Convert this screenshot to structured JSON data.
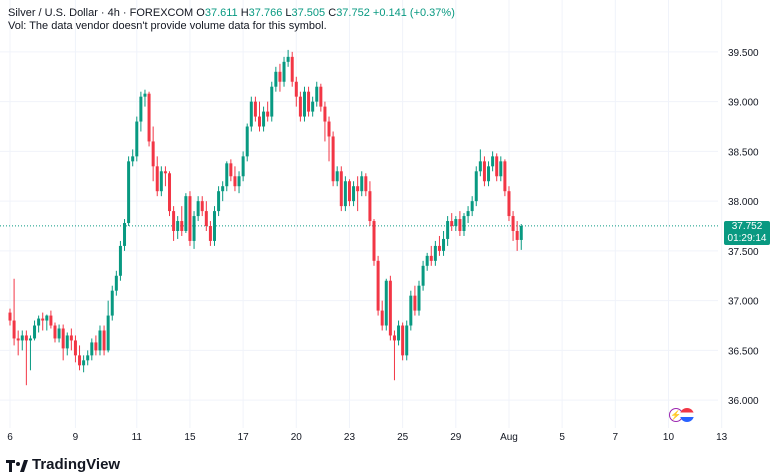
{
  "legend": {
    "symbol": "Silver / U.S. Dollar · 4h · FOREXCOM",
    "o_label": "O",
    "o_value": "37.611",
    "h_label": "H",
    "h_value": "37.766",
    "l_label": "L",
    "l_value": "37.505",
    "c_label": "C",
    "c_value": "37.752",
    "change": "+0.141 (+0.37%)"
  },
  "volume_note": "Vol: The data vendor doesn't provide volume data for this symbol.",
  "last_price": {
    "value": "37.752",
    "countdown": "01:29:14"
  },
  "brand": {
    "name": "TradingView"
  },
  "colors": {
    "up": "#089981",
    "down": "#F23645",
    "grid": "#F0F3FA",
    "axis_text": "#131722"
  },
  "icons": {
    "event_badge": "lightning-icon",
    "flag_badge": "us-flag-icon",
    "logo": "tradingview-logo-icon"
  },
  "chart_data": {
    "type": "candlestick",
    "title": "",
    "y_ticks": [
      "39.500",
      "39.000",
      "38.500",
      "38.000",
      "37.500",
      "37.000",
      "36.500",
      "36.000"
    ],
    "y_tick_values": [
      39.5,
      39.0,
      38.5,
      38.0,
      37.5,
      37.0,
      36.5,
      36.0
    ],
    "ylim": [
      35.72,
      39.72
    ],
    "x_ticks": [
      "6",
      "9",
      "11",
      "15",
      "17",
      "20",
      "23",
      "25",
      "29",
      "Aug",
      "5",
      "7",
      "10",
      "13"
    ],
    "x_tick_index": [
      0,
      16,
      31,
      44,
      57,
      70,
      83,
      96,
      109,
      122,
      135,
      148,
      161,
      174
    ],
    "last_price_line": 37.752,
    "candles": [
      [
        36.88,
        36.92,
        36.75,
        36.8
      ],
      [
        36.8,
        37.22,
        36.55,
        36.62
      ],
      [
        36.62,
        36.7,
        36.45,
        36.6
      ],
      [
        36.6,
        36.7,
        36.5,
        36.65
      ],
      [
        36.65,
        36.7,
        36.15,
        36.6
      ],
      [
        36.6,
        36.65,
        36.3,
        36.62
      ],
      [
        36.62,
        36.8,
        36.6,
        36.75
      ],
      [
        36.75,
        36.85,
        36.68,
        36.82
      ],
      [
        36.82,
        36.88,
        36.7,
        36.8
      ],
      [
        36.8,
        36.86,
        36.7,
        36.85
      ],
      [
        36.85,
        36.9,
        36.72,
        36.75
      ],
      [
        36.75,
        36.78,
        36.58,
        36.62
      ],
      [
        36.62,
        36.76,
        36.58,
        36.72
      ],
      [
        36.72,
        36.76,
        36.4,
        36.52
      ],
      [
        36.52,
        36.68,
        36.45,
        36.65
      ],
      [
        36.65,
        36.72,
        36.5,
        36.6
      ],
      [
        36.6,
        36.65,
        36.38,
        36.45
      ],
      [
        36.45,
        36.55,
        36.3,
        36.35
      ],
      [
        36.35,
        36.45,
        36.28,
        36.4
      ],
      [
        36.4,
        36.5,
        36.35,
        36.45
      ],
      [
        36.45,
        36.62,
        36.4,
        36.58
      ],
      [
        36.58,
        36.65,
        36.45,
        36.5
      ],
      [
        36.5,
        36.75,
        36.45,
        36.7
      ],
      [
        36.7,
        36.75,
        36.45,
        36.5
      ],
      [
        36.5,
        37.0,
        36.48,
        36.85
      ],
      [
        36.85,
        37.15,
        36.8,
        37.1
      ],
      [
        37.1,
        37.3,
        37.05,
        37.25
      ],
      [
        37.25,
        37.6,
        37.2,
        37.55
      ],
      [
        37.55,
        37.82,
        37.5,
        37.78
      ],
      [
        37.78,
        38.45,
        37.75,
        38.4
      ],
      [
        38.4,
        38.52,
        38.35,
        38.45
      ],
      [
        38.45,
        38.85,
        38.4,
        38.8
      ],
      [
        38.8,
        39.1,
        38.7,
        39.05
      ],
      [
        39.05,
        39.12,
        38.95,
        39.08
      ],
      [
        39.08,
        39.1,
        38.55,
        38.6
      ],
      [
        38.6,
        38.75,
        38.2,
        38.35
      ],
      [
        38.35,
        38.45,
        38.05,
        38.1
      ],
      [
        38.1,
        38.35,
        38.05,
        38.3
      ],
      [
        38.3,
        38.35,
        38.15,
        38.28
      ],
      [
        38.28,
        38.3,
        37.85,
        37.9
      ],
      [
        37.9,
        37.95,
        37.6,
        37.7
      ],
      [
        37.7,
        37.85,
        37.62,
        37.8
      ],
      [
        37.8,
        37.95,
        37.65,
        37.7
      ],
      [
        37.7,
        38.08,
        37.68,
        38.05
      ],
      [
        38.05,
        38.1,
        37.55,
        37.6
      ],
      [
        37.6,
        37.9,
        37.52,
        37.85
      ],
      [
        37.85,
        38.05,
        37.8,
        38.0
      ],
      [
        38.0,
        38.05,
        37.85,
        37.9
      ],
      [
        37.9,
        38.0,
        37.7,
        37.75
      ],
      [
        37.75,
        37.8,
        37.55,
        37.6
      ],
      [
        37.6,
        37.95,
        37.55,
        37.9
      ],
      [
        37.9,
        38.15,
        37.85,
        38.1
      ],
      [
        38.1,
        38.2,
        38.0,
        38.15
      ],
      [
        38.15,
        38.4,
        38.1,
        38.38
      ],
      [
        38.38,
        38.42,
        38.2,
        38.25
      ],
      [
        38.25,
        38.35,
        38.1,
        38.15
      ],
      [
        38.15,
        38.3,
        38.08,
        38.25
      ],
      [
        38.25,
        38.5,
        38.2,
        38.45
      ],
      [
        38.45,
        38.78,
        38.4,
        38.75
      ],
      [
        38.75,
        39.05,
        38.7,
        39.0
      ],
      [
        39.0,
        39.05,
        38.8,
        38.85
      ],
      [
        38.85,
        39.0,
        38.7,
        38.75
      ],
      [
        38.75,
        38.95,
        38.7,
        38.9
      ],
      [
        38.9,
        39.0,
        38.8,
        38.85
      ],
      [
        38.85,
        39.2,
        38.8,
        39.15
      ],
      [
        39.15,
        39.35,
        39.1,
        39.3
      ],
      [
        39.3,
        39.38,
        39.1,
        39.2
      ],
      [
        39.2,
        39.45,
        39.15,
        39.4
      ],
      [
        39.4,
        39.52,
        39.35,
        39.45
      ],
      [
        39.45,
        39.5,
        39.15,
        39.2
      ],
      [
        39.2,
        39.25,
        38.95,
        39.05
      ],
      [
        39.05,
        39.1,
        38.8,
        38.85
      ],
      [
        38.85,
        39.15,
        38.8,
        39.1
      ],
      [
        39.1,
        39.15,
        38.85,
        38.9
      ],
      [
        38.9,
        39.05,
        38.85,
        39.0
      ],
      [
        39.0,
        39.2,
        38.95,
        39.15
      ],
      [
        39.15,
        39.18,
        38.9,
        38.95
      ],
      [
        38.95,
        39.0,
        38.6,
        38.8
      ],
      [
        38.8,
        38.85,
        38.4,
        38.65
      ],
      [
        38.65,
        38.7,
        38.15,
        38.2
      ],
      [
        38.2,
        38.35,
        38.15,
        38.3
      ],
      [
        38.3,
        38.35,
        37.9,
        37.95
      ],
      [
        37.95,
        38.25,
        37.9,
        38.2
      ],
      [
        38.2,
        38.22,
        37.95,
        38.0
      ],
      [
        38.0,
        38.2,
        37.95,
        38.15
      ],
      [
        38.15,
        38.25,
        37.9,
        38.1
      ],
      [
        38.1,
        38.3,
        38.05,
        38.25
      ],
      [
        38.25,
        38.28,
        38.05,
        38.1
      ],
      [
        38.1,
        38.2,
        37.75,
        37.8
      ],
      [
        37.8,
        37.82,
        37.35,
        37.4
      ],
      [
        37.4,
        37.45,
        36.85,
        36.9
      ],
      [
        36.9,
        37.0,
        36.7,
        36.75
      ],
      [
        36.75,
        37.22,
        36.7,
        37.2
      ],
      [
        37.2,
        37.25,
        36.6,
        36.65
      ],
      [
        36.65,
        36.7,
        36.2,
        36.6
      ],
      [
        36.6,
        36.8,
        36.55,
        36.75
      ],
      [
        36.75,
        36.78,
        36.4,
        36.45
      ],
      [
        36.45,
        36.8,
        36.4,
        36.75
      ],
      [
        36.75,
        37.1,
        36.7,
        37.05
      ],
      [
        37.05,
        37.15,
        36.85,
        36.9
      ],
      [
        36.9,
        37.2,
        36.85,
        37.15
      ],
      [
        37.15,
        37.4,
        37.1,
        37.35
      ],
      [
        37.35,
        37.48,
        37.3,
        37.45
      ],
      [
        37.45,
        37.55,
        37.35,
        37.4
      ],
      [
        37.4,
        37.6,
        37.35,
        37.55
      ],
      [
        37.55,
        37.65,
        37.45,
        37.5
      ],
      [
        37.5,
        37.7,
        37.45,
        37.62
      ],
      [
        37.62,
        37.85,
        37.55,
        37.8
      ],
      [
        37.8,
        37.88,
        37.7,
        37.75
      ],
      [
        37.75,
        37.85,
        37.7,
        37.82
      ],
      [
        37.82,
        37.9,
        37.65,
        37.7
      ],
      [
        37.7,
        37.88,
        37.65,
        37.85
      ],
      [
        37.85,
        37.95,
        37.78,
        37.9
      ],
      [
        37.9,
        38.05,
        37.85,
        38.0
      ],
      [
        38.0,
        38.35,
        37.95,
        38.3
      ],
      [
        38.3,
        38.52,
        38.25,
        38.4
      ],
      [
        38.4,
        38.45,
        38.15,
        38.2
      ],
      [
        38.2,
        38.4,
        38.15,
        38.35
      ],
      [
        38.35,
        38.5,
        38.3,
        38.45
      ],
      [
        38.45,
        38.48,
        38.2,
        38.25
      ],
      [
        38.25,
        38.45,
        38.2,
        38.4
      ],
      [
        38.4,
        38.42,
        38.05,
        38.1
      ],
      [
        38.1,
        38.15,
        37.8,
        37.85
      ],
      [
        37.85,
        37.9,
        37.6,
        37.7
      ],
      [
        37.7,
        37.8,
        37.5,
        37.61
      ],
      [
        37.61,
        37.77,
        37.51,
        37.75
      ]
    ]
  }
}
